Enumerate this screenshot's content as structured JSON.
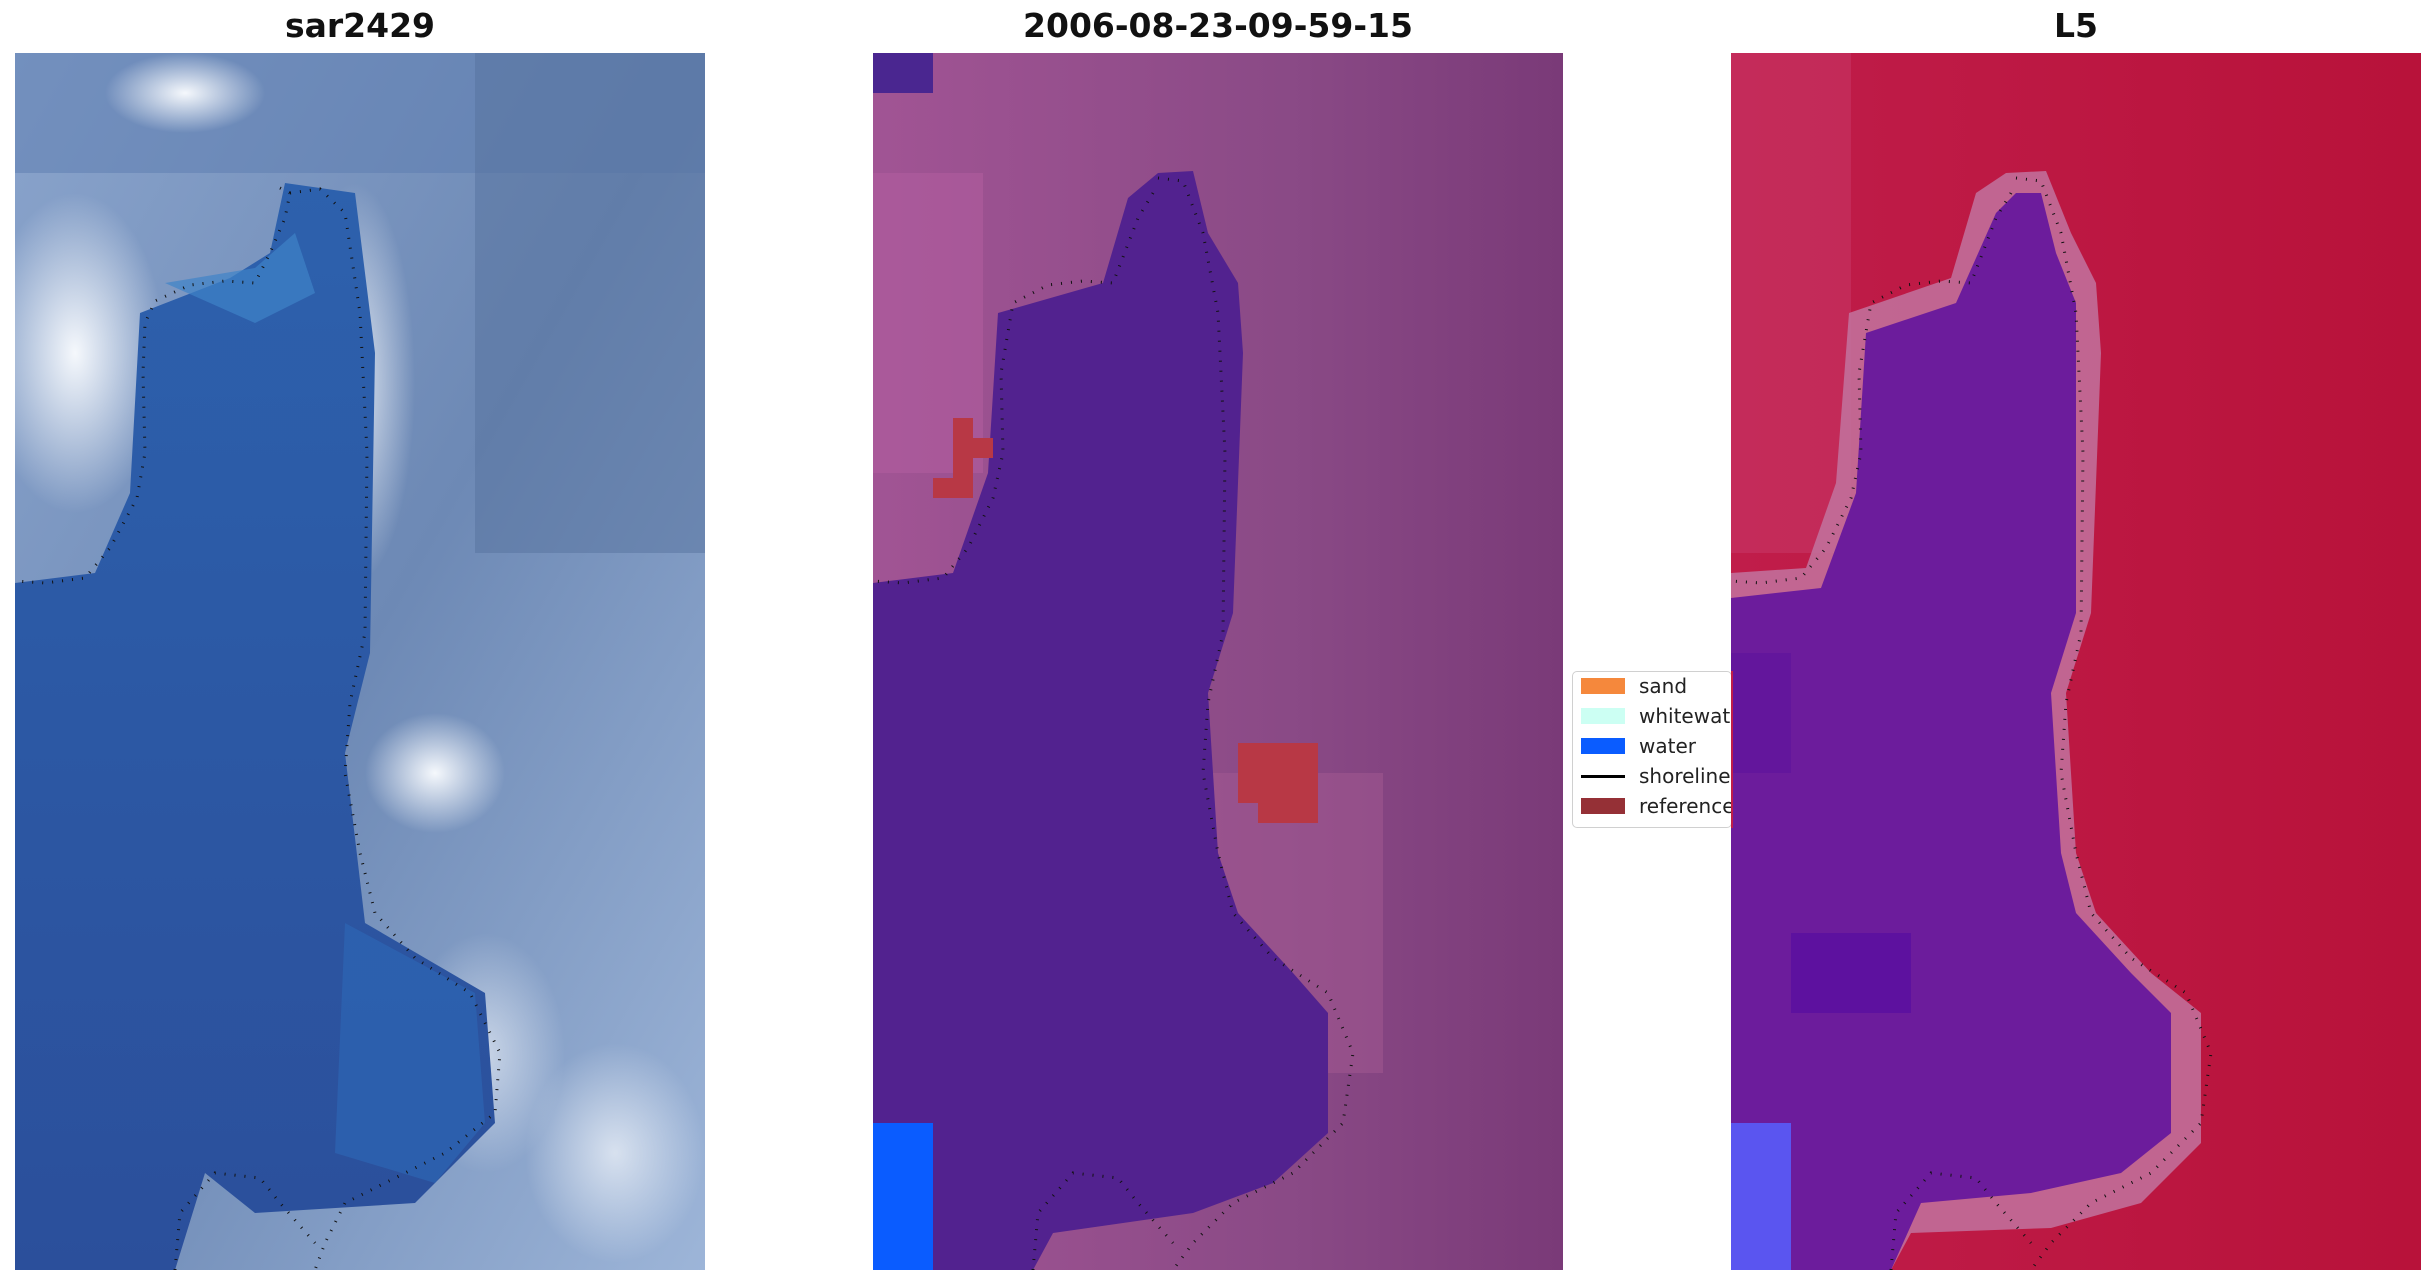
{
  "panels": [
    {
      "title": "sar2429"
    },
    {
      "title": "2006-08-23-09-59-15"
    },
    {
      "title": "L5"
    }
  ],
  "legend": {
    "items": [
      {
        "label": "sand",
        "color": "#f5883c",
        "kind": "patch"
      },
      {
        "label": "whitewater",
        "color": "#ccfff3",
        "kind": "patch"
      },
      {
        "label": "water",
        "color": "#0a5cff",
        "kind": "patch"
      },
      {
        "label": "shoreline",
        "color": "#000000",
        "kind": "line"
      },
      {
        "label": "reference",
        "color": "#953036",
        "kind": "patch"
      }
    ]
  },
  "colors": {
    "water_blue": "#2e549f",
    "land_blue_gray": "#6f8bb6",
    "bright_white": "#e6edf6",
    "classified_water": "#52228f",
    "classified_land": "#8d4b87",
    "reference_red": "#b83845",
    "ocean_bright_blue": "#0a5cff",
    "land_red": "#c0163f",
    "water_purple": "#6c1c9c"
  }
}
